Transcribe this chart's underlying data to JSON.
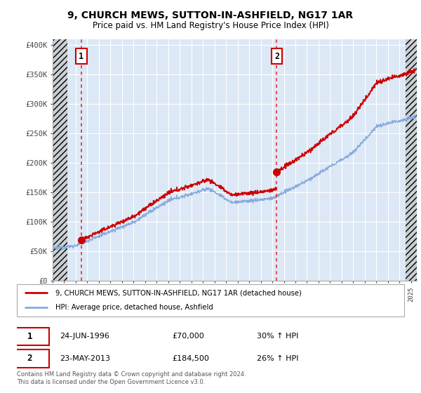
{
  "title": "9, CHURCH MEWS, SUTTON-IN-ASHFIELD, NG17 1AR",
  "subtitle": "Price paid vs. HM Land Registry's House Price Index (HPI)",
  "ylabel_ticks": [
    "£0",
    "£50K",
    "£100K",
    "£150K",
    "£200K",
    "£250K",
    "£300K",
    "£350K",
    "£400K"
  ],
  "ytick_values": [
    0,
    50000,
    100000,
    150000,
    200000,
    250000,
    300000,
    350000,
    400000
  ],
  "ylim": [
    0,
    410000
  ],
  "xlim_start": 1994.0,
  "xlim_end": 2025.5,
  "sale1_date": 1996.48,
  "sale1_price": 70000,
  "sale2_date": 2013.39,
  "sale2_price": 184500,
  "sale1_label": "1",
  "sale2_label": "2",
  "property_line_color": "#cc0000",
  "hpi_line_color": "#88aadd",
  "dashed_vline_color": "#dd2222",
  "legend_property": "9, CHURCH MEWS, SUTTON-IN-ASHFIELD, NG17 1AR (detached house)",
  "legend_hpi": "HPI: Average price, detached house, Ashfield",
  "footer": "Contains HM Land Registry data © Crown copyright and database right 2024.\nThis data is licensed under the Open Government Licence v3.0.",
  "plot_bg": "#dce8f5",
  "grid_color": "#ffffff",
  "hatch_left_end": 1995.3,
  "hatch_right_start": 2024.5
}
